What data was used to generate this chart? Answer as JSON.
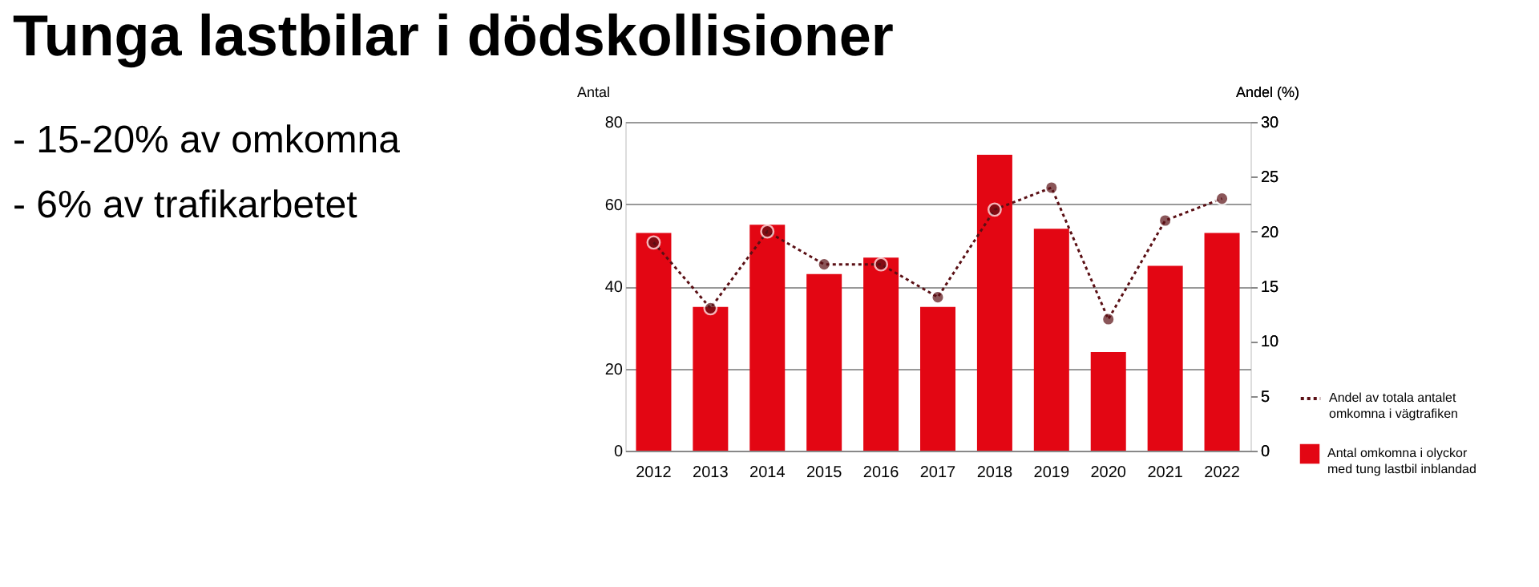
{
  "chart_data": {
    "type": "bar",
    "title": "Tunga lastbilar i dödskollisioner",
    "annotations": [
      "-  15-20% av omkomna",
      "-  6% av trafikarbetet"
    ],
    "categories": [
      "2012",
      "2013",
      "2014",
      "2015",
      "2016",
      "2017",
      "2018",
      "2019",
      "2020",
      "2021",
      "2022"
    ],
    "ylabel": "Antal",
    "y2label": "Andel (%)",
    "series": [
      {
        "name": "Antal omkomna i olyckor med tung lastbil inblandad",
        "color": "#e30613",
        "values": [
          53,
          35,
          55,
          43,
          47,
          35,
          72,
          54,
          24,
          45,
          53
        ]
      },
      {
        "name": "Andel av totala antalet omkomna i vägtrafiken",
        "type": "line",
        "axis": "y2",
        "color": "#5a0f14",
        "marker": "circle",
        "line_style": "dotted",
        "values": [
          19,
          13,
          20,
          17,
          17,
          14,
          22,
          24,
          12,
          21,
          23
        ]
      }
    ],
    "ylim": [
      0,
      80
    ],
    "yticks": [
      0,
      20,
      40,
      60,
      80
    ],
    "y2lim": [
      0,
      30
    ],
    "y2ticks": [
      0,
      5,
      10,
      15,
      20,
      25,
      30
    ],
    "grid": "y",
    "legend": "bottom right"
  }
}
